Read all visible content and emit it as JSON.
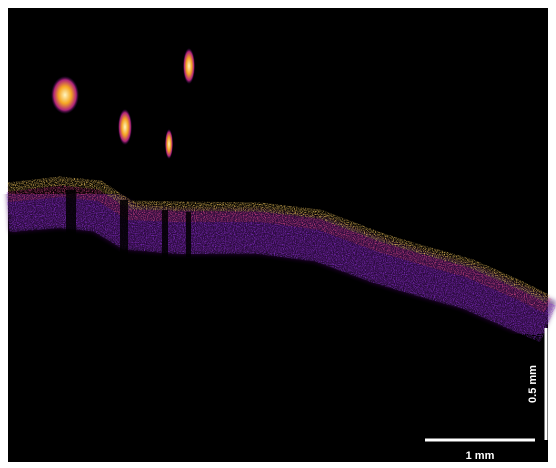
{
  "scale_bars": {
    "vertical": {
      "label": "0.5 mm"
    },
    "horizontal": {
      "label": "1 mm"
    }
  }
}
